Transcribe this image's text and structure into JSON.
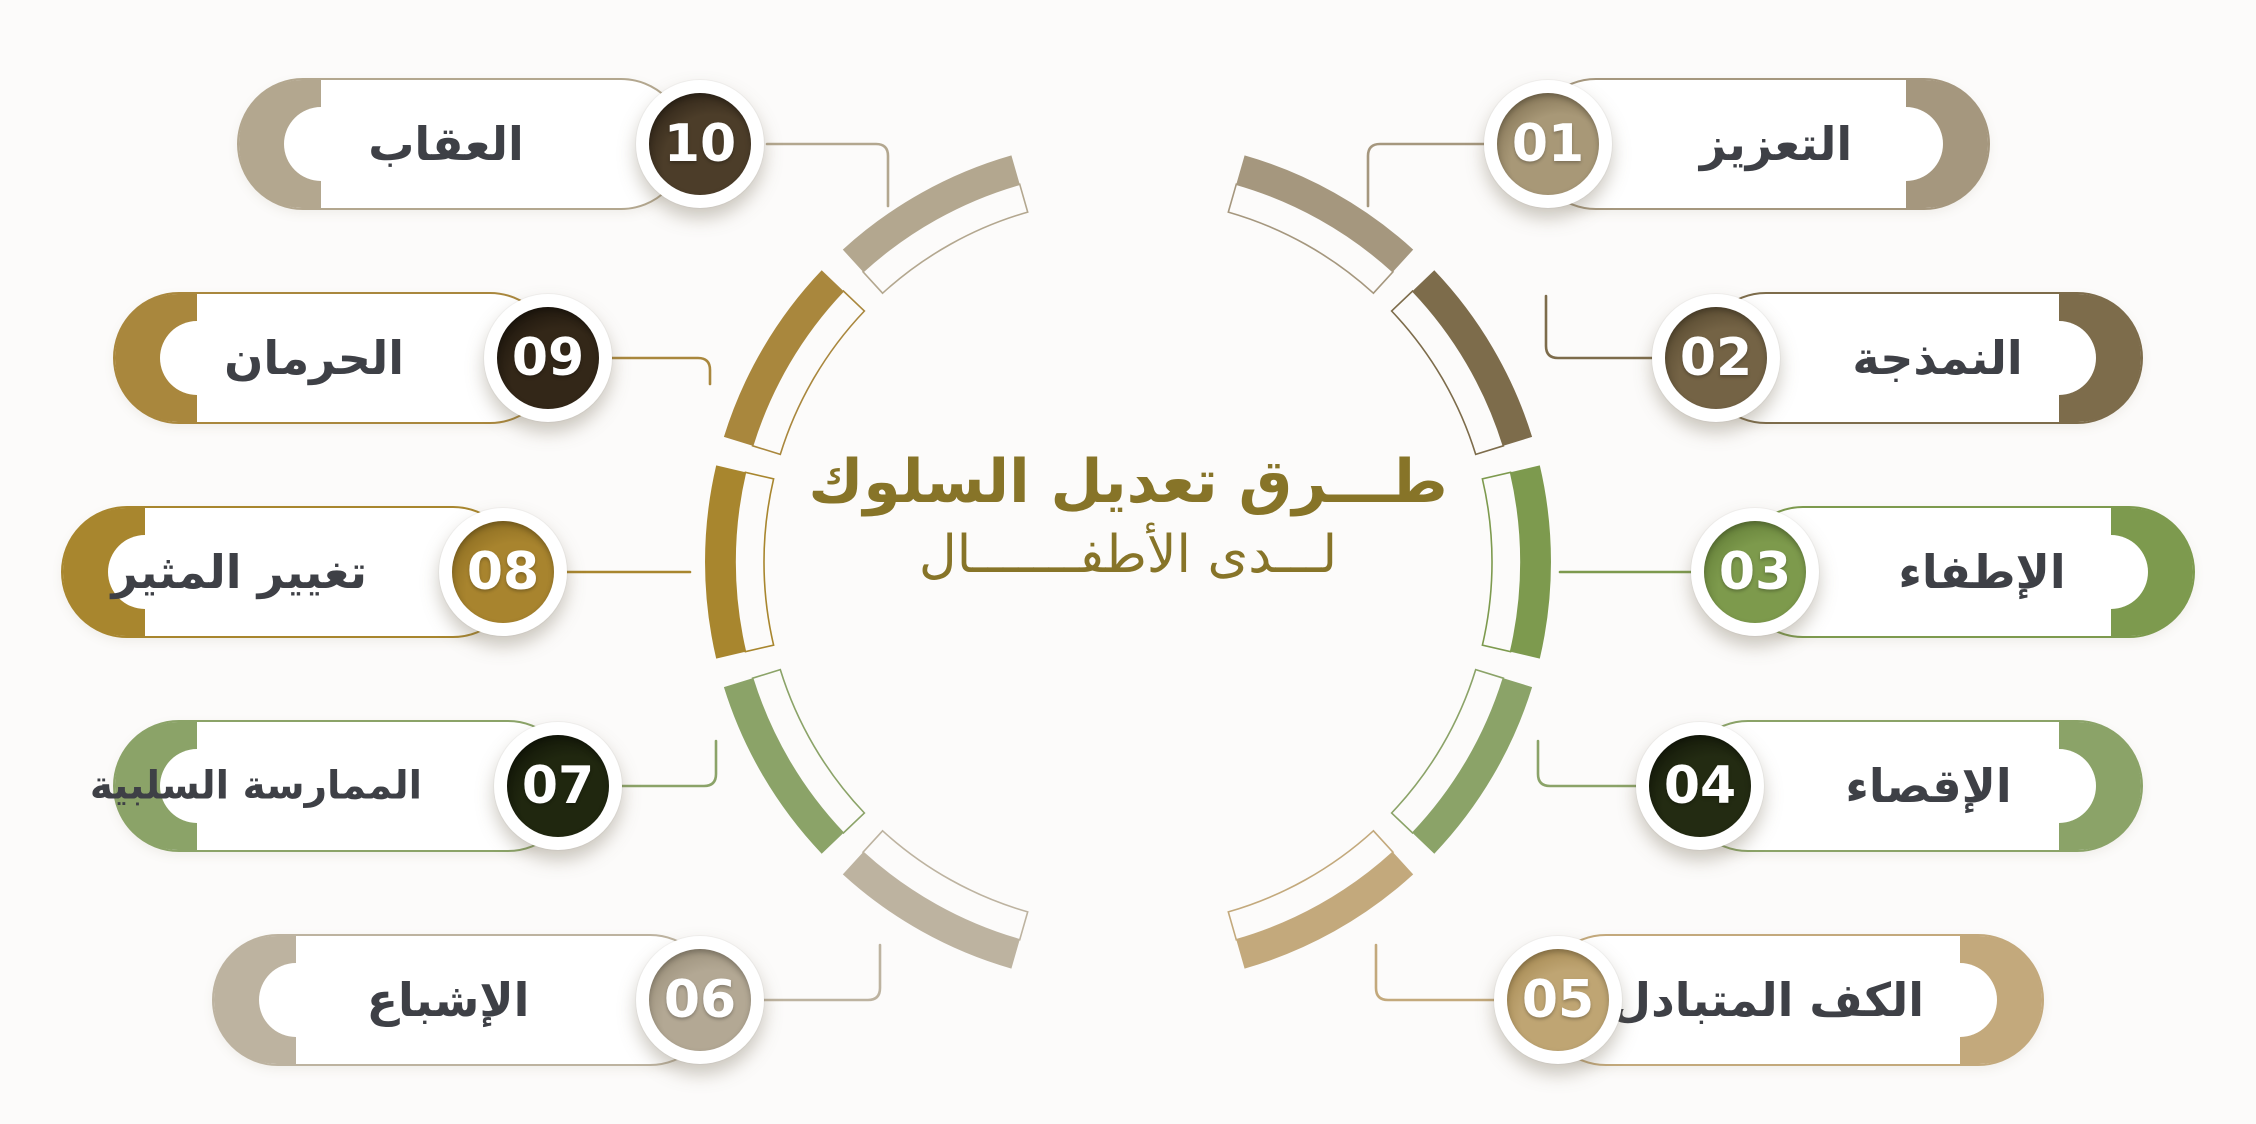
{
  "title": {
    "line1": "طـــرق تعديل السلوك",
    "line2": "لـــدى الأطفـــــــال"
  },
  "title_color": "#877428",
  "label_color": "#3e4046",
  "background_color": "#fcfbfa",
  "items": [
    {
      "num": "01",
      "label": "التعزيز",
      "accent": "#a5977e",
      "badge_base": "#a89877",
      "badge_dark": "#6b5c3f"
    },
    {
      "num": "02",
      "label": "النمذجة",
      "accent": "#7d6c4b",
      "badge_base": "#746345",
      "badge_dark": "#443822"
    },
    {
      "num": "03",
      "label": "الإطفاء",
      "accent": "#7d9a4e",
      "badge_base": "#7d9a4c",
      "badge_dark": "#556f2d"
    },
    {
      "num": "04",
      "label": "الإقصاء",
      "accent": "#8ba368",
      "badge_base": "#232b12",
      "badge_dark": "#0a0d04"
    },
    {
      "num": "05",
      "label": "الكف المتبادل",
      "accent": "#c3a97c",
      "badge_base": "#bfa573",
      "badge_dark": "#97793f"
    },
    {
      "num": "06",
      "label": "الإشباع",
      "accent": "#bdb3a0",
      "badge_base": "#b3a894",
      "badge_dark": "#8a7f69"
    },
    {
      "num": "07",
      "label": "الممارسة السلبية",
      "accent": "#8ba368",
      "badge_base": "#20270f",
      "badge_dark": "#080a03"
    },
    {
      "num": "08",
      "label": "تغيير المثير",
      "accent": "#a8862e",
      "badge_base": "#a8842e",
      "badge_dark": "#7a5e1a"
    },
    {
      "num": "09",
      "label": "الحرمان",
      "accent": "#a9873d",
      "badge_base": "#332718",
      "badge_dark": "#0e0a05"
    },
    {
      "num": "10",
      "label": "العقاب",
      "accent": "#b3a78f",
      "badge_base": "#4c3d29",
      "badge_dark": "#1d150d"
    }
  ]
}
